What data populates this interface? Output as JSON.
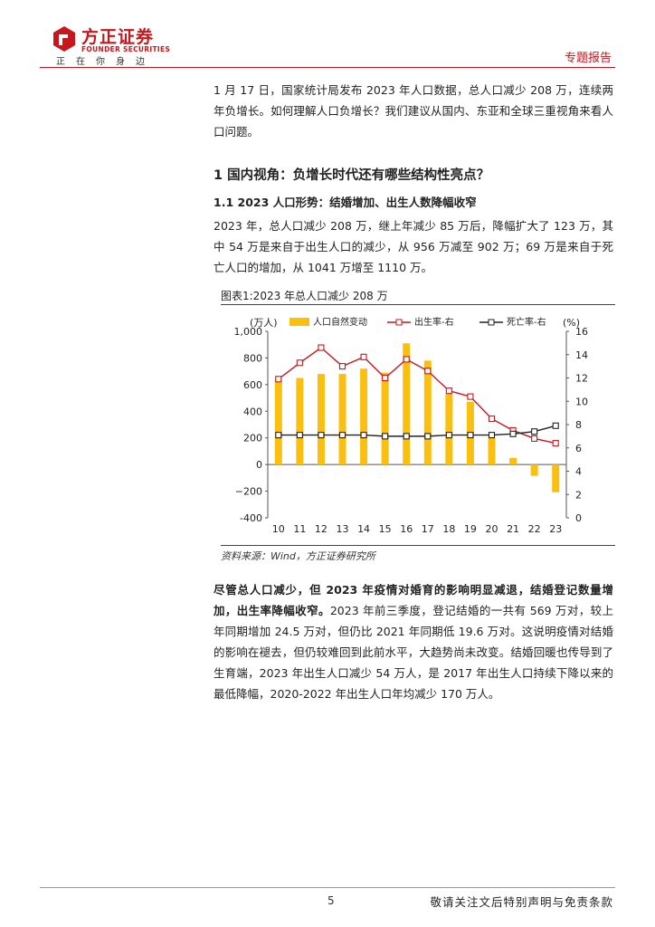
{
  "header": {
    "logo_cn": "方正证券",
    "logo_en": "FOUNDER SECURITIES",
    "slogan": "正在你身边",
    "report_type": "专题报告",
    "brand_color": "#c8161d"
  },
  "intro": "1 月 17 日，国家统计局发布 2023 年人口数据，总人口减少 208 万，连续两年负增长。如何理解人口负增长？我们建议从国内、东亚和全球三重视角来看人口问题。",
  "section1_title": "1 国内视角：负增长时代还有哪些结构性亮点？",
  "section1_1_title": "1.1 2023 人口形势：结婚增加、出生人数降幅收窄",
  "para1": "2023 年，总人口减少 208 万，继上年减少 85 万后，降幅扩大了 123 万，其中 54 万是来自于出生人口的减少，从 956 万减至 902 万；69 万是来自于死亡人口的增加，从 1041 万增至 1110 万。",
  "figure": {
    "title": "图表1:2023 年总人口减少 208 万",
    "source": "资料来源：Wind，方正证券研究所"
  },
  "para2_bold": "尽管总人口减少，但 2023 年疫情对婚育的影响明显减退，结婚登记数量增加，出生率降幅收窄。",
  "para2_rest": "2023 年前三季度，登记结婚的一共有 569 万对，较上年同期增加 24.5 万对，但仍比 2021 年同期低 19.6 万对。这说明疫情对结婚的影响在褪去，但仍较难回到此前水平，大趋势尚未改变。结婚回暖也传导到了生育端，2023 年出生人口减少 54 万人，是 2017 年出生人口持续下降以来的最低降幅，2020-2022 年出生人口年均减少 170 万人。",
  "footer": {
    "page": "5",
    "disclaimer": "敬请关注文后特别声明与免责条款"
  },
  "chart_data": {
    "type": "bar+line",
    "categories": [
      "10",
      "11",
      "12",
      "13",
      "14",
      "15",
      "16",
      "17",
      "18",
      "19",
      "20",
      "21",
      "22",
      "23"
    ],
    "left_axis": {
      "label": "(万人)",
      "ylim": [
        -400,
        1000
      ],
      "ticks": [
        "-400",
        "−200",
        "0",
        "200",
        "400",
        "600",
        "800",
        "1,000"
      ]
    },
    "right_axis": {
      "label": "(%)",
      "ylim": [
        0,
        16
      ],
      "ticks": [
        "0",
        "2",
        "4",
        "6",
        "8",
        "10",
        "12",
        "14",
        "16"
      ]
    },
    "legend_position": "top",
    "series": [
      {
        "name": "人口自然变动",
        "kind": "bar",
        "axis": "left",
        "color": "#fbbf0f",
        "values": [
          640,
          650,
          680,
          680,
          720,
          690,
          910,
          780,
          530,
          470,
          200,
          50,
          -85,
          -208
        ]
      },
      {
        "name": "出生率-右",
        "kind": "line",
        "axis": "right",
        "color": "#c8161d",
        "values": [
          11.9,
          13.3,
          14.6,
          13.0,
          13.8,
          12.0,
          13.6,
          12.6,
          10.9,
          10.4,
          8.5,
          7.5,
          6.8,
          6.4
        ]
      },
      {
        "name": "死亡率-右",
        "kind": "line",
        "axis": "right",
        "color": "#222222",
        "values": [
          7.1,
          7.1,
          7.1,
          7.1,
          7.1,
          7.0,
          7.0,
          7.0,
          7.1,
          7.1,
          7.1,
          7.2,
          7.4,
          7.9
        ]
      }
    ]
  }
}
